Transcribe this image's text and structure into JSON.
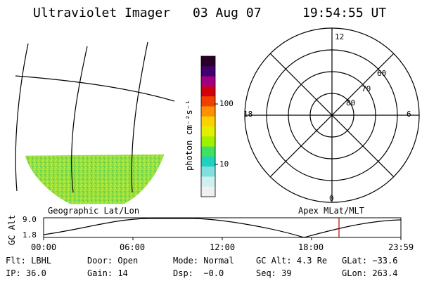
{
  "header": {
    "title": "Ultraviolet Imager",
    "date": "03 Aug 07",
    "time": "19:54:55 UT"
  },
  "geo_panel": {
    "label": "Geographic Lat/Lon"
  },
  "colorbar": {
    "unit_label": "photon cm⁻²s⁻¹",
    "ticks": [
      "100",
      "10"
    ],
    "scale": "log",
    "colors": [
      "#2a0028",
      "#400070",
      "#a00080",
      "#d00010",
      "#f04000",
      "#ff9000",
      "#ffd000",
      "#e0f000",
      "#a0f000",
      "#40e060",
      "#20d0c0",
      "#80e0e0",
      "#d0f0f0",
      "#f0f0f0"
    ]
  },
  "polar_panel": {
    "label": "Apex  MLat/MLT",
    "mlt_labels": {
      "top": "12",
      "left": "18",
      "right": "6",
      "bottom": "0"
    },
    "lat_labels": [
      "60",
      "70",
      "80"
    ]
  },
  "orbit_plot": {
    "ylabel": "GC Alt",
    "yticks": [
      "9.0",
      "1.8"
    ],
    "xticks": [
      "00:00",
      "06:00",
      "12:00",
      "18:00",
      "23:59"
    ],
    "current_marker_color": "#c00000"
  },
  "status": {
    "row1": [
      {
        "key": "Flt:",
        "value": "LBHL"
      },
      {
        "key": "Door:",
        "value": "Open"
      },
      {
        "key": "Mode:",
        "value": "Normal"
      },
      {
        "key": "GC Alt:",
        "value": "4.3 Re"
      },
      {
        "key": "GLat:",
        "value": "−33.6"
      }
    ],
    "row2": [
      {
        "key": "IP:",
        "value": "36.0"
      },
      {
        "key": "Gain:",
        "value": "14"
      },
      {
        "key": "Dsp:",
        "value": "  −0.0"
      },
      {
        "key": "Seq:",
        "value": "39"
      },
      {
        "key": "GLon:",
        "value": "263.4"
      }
    ]
  }
}
